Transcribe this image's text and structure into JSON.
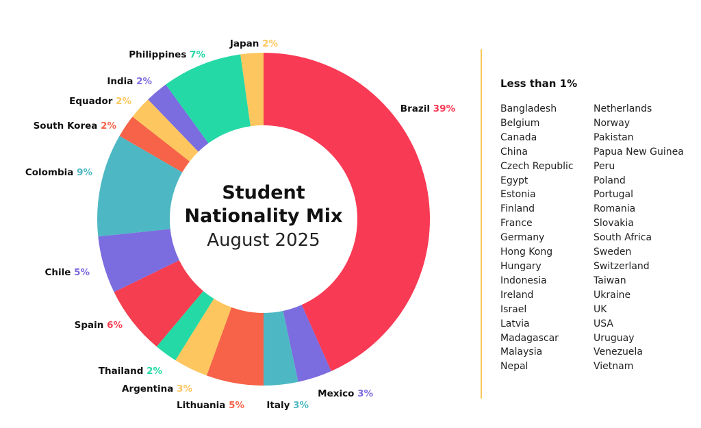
{
  "chart_data": {
    "type": "pie",
    "title": "Student",
    "title_line2": "Nationality Mix",
    "subtitle": "August 2025",
    "slices": [
      {
        "label": "Brazil",
        "value": 39,
        "value_label": "39%",
        "color": "#F83A55"
      },
      {
        "label": "Mexico",
        "value": 3,
        "value_label": "3%",
        "color": "#7B6CDF"
      },
      {
        "label": "Italy",
        "value": 3,
        "value_label": "3%",
        "color": "#4DB8C4"
      },
      {
        "label": "Lithuania",
        "value": 5,
        "value_label": "5%",
        "color": "#F66348"
      },
      {
        "label": "Argentina",
        "value": 3,
        "value_label": "3%",
        "color": "#FDC65E"
      },
      {
        "label": "Thailand",
        "value": 2,
        "value_label": "2%",
        "color": "#24D9A6"
      },
      {
        "label": "Spain",
        "value": 6,
        "value_label": "6%",
        "color": "#F53F51"
      },
      {
        "label": "Chile",
        "value": 5,
        "value_label": "5%",
        "color": "#7B6CDF"
      },
      {
        "label": "Colombia",
        "value": 9,
        "value_label": "9%",
        "color": "#4DB8C4"
      },
      {
        "label": "South Korea",
        "value": 2,
        "value_label": "2%",
        "color": "#F66348"
      },
      {
        "label": "Equador",
        "value": 2,
        "value_label": "2%",
        "color": "#FDC65E"
      },
      {
        "label": "India",
        "value": 2,
        "value_label": "2%",
        "color": "#7B6CDF"
      },
      {
        "label": "Philippines",
        "value": 7,
        "value_label": "7%",
        "color": "#24D9A6"
      },
      {
        "label": "Japan",
        "value": 2,
        "value_label": "2%",
        "color": "#FDC65E"
      }
    ],
    "minor": {
      "title": "Less than 1%",
      "column_1": [
        "Bangladesh",
        "Belgium",
        "Canada",
        "China",
        "Czech Republic",
        "Egypt",
        "Estonia",
        "Finland",
        "France",
        "Germany",
        "Hong Kong",
        "Hungary",
        "Indonesia",
        "Ireland",
        "Israel",
        "Latvia",
        "Madagascar",
        "Malaysia",
        "Nepal"
      ],
      "column_2": [
        "Netherlands",
        "Norway",
        "Pakistan",
        "Papua New Guinea",
        "Peru",
        "Poland",
        "Portugal",
        "Romania",
        "Slovakia",
        "South Africa",
        "Sweden",
        "Switzerland",
        "Taiwan",
        "Ukraine",
        "UK",
        "USA",
        "Uruguay",
        "Venezuela",
        "Vietnam"
      ]
    }
  }
}
